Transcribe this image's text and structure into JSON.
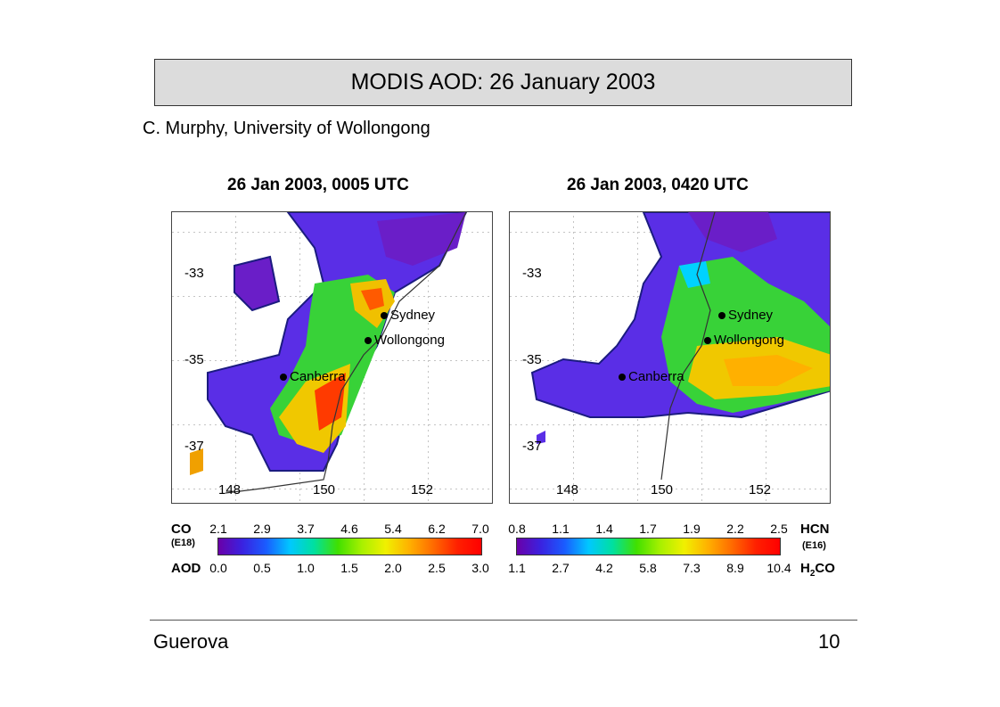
{
  "slide": {
    "title": "MODIS AOD: 26 January 2003",
    "credit": "C. Murphy, University of Wollongong",
    "footer_left": "Guerova",
    "footer_right": "10"
  },
  "maps": [
    {
      "title": "26 Jan 2003, 0005 UTC",
      "lat_labels": [
        "-33",
        "-35",
        "-37"
      ],
      "lon_labels": [
        "148",
        "150",
        "152"
      ],
      "cities": [
        "Sydney",
        "Wollongong",
        "Canberra"
      ]
    },
    {
      "title": "26 Jan 2003, 0420 UTC",
      "lat_labels": [
        "-33",
        "-35",
        "-37"
      ],
      "lon_labels": [
        "148",
        "150",
        "152"
      ],
      "cities": [
        "Sydney",
        "Wollongong",
        "Canberra"
      ]
    }
  ],
  "legend_left": {
    "top_label": "CO",
    "top_sub": "(E18)",
    "top_ticks": [
      "2.1",
      "2.9",
      "3.7",
      "4.6",
      "5.4",
      "6.2",
      "7.0"
    ],
    "bottom_label": "AOD",
    "bottom_ticks": [
      "0.0",
      "0.5",
      "1.0",
      "1.5",
      "2.0",
      "2.5",
      "3.0"
    ]
  },
  "legend_right": {
    "top_label": "HCN",
    "top_sub": "(E16)",
    "top_ticks": [
      "0.8",
      "1.1",
      "1.4",
      "1.7",
      "1.9",
      "2.2",
      "2.5"
    ],
    "bottom_label_main": "H",
    "bottom_label_sub": "2",
    "bottom_label_end": "CO",
    "bottom_ticks": [
      "1.1",
      "2.7",
      "4.2",
      "5.8",
      "7.3",
      "8.9",
      "10.4"
    ]
  }
}
